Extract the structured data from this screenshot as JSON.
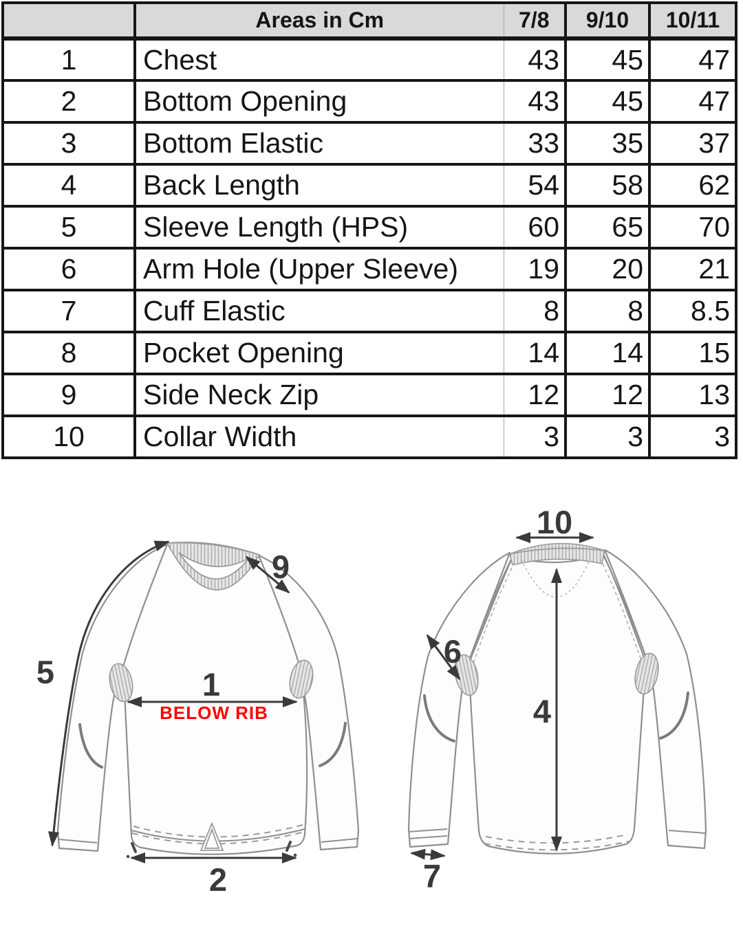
{
  "table": {
    "header": {
      "corner_label": "",
      "area_column_label": "Areas in Cm",
      "size_labels": [
        "7/8",
        "9/10",
        "10/11"
      ]
    },
    "rows": [
      {
        "num": "1",
        "area": "Chest",
        "values": [
          "43",
          "45",
          "47"
        ]
      },
      {
        "num": "2",
        "area": "Bottom Opening",
        "values": [
          "43",
          "45",
          "47"
        ]
      },
      {
        "num": "3",
        "area": "Bottom Elastic",
        "values": [
          "33",
          "35",
          "37"
        ]
      },
      {
        "num": "4",
        "area": "Back Length",
        "values": [
          "54",
          "58",
          "62"
        ]
      },
      {
        "num": "5",
        "area": "Sleeve Length (HPS)",
        "values": [
          "60",
          "65",
          "70"
        ]
      },
      {
        "num": "6",
        "area": "Arm Hole (Upper Sleeve)",
        "values": [
          "19",
          "20",
          "21"
        ]
      },
      {
        "num": "7",
        "area": "Cuff Elastic",
        "values": [
          "8",
          "8",
          "8.5"
        ]
      },
      {
        "num": "8",
        "area": "Pocket Opening",
        "values": [
          "14",
          "14",
          "15"
        ]
      },
      {
        "num": "9",
        "area": "Side Neck Zip",
        "values": [
          "12",
          "12",
          "13"
        ]
      },
      {
        "num": "10",
        "area": "Collar Width",
        "values": [
          "3",
          "3",
          "3"
        ]
      }
    ]
  },
  "diagrams": {
    "front": {
      "labels": {
        "sleeve_length": "5",
        "side_neck_zip": "9",
        "chest": "1",
        "chest_note": "BELOW RIB",
        "bottom_opening": "2"
      }
    },
    "back": {
      "labels": {
        "collar_width": "10",
        "arm_hole": "6",
        "back_length": "4",
        "cuff_elastic": "7"
      }
    }
  },
  "colors": {
    "header_bg": "#d9d9d9",
    "grid_black": "#161616",
    "thin_grid": "#a8a8a8",
    "sketch_line": "#8f8f8f",
    "arrow_dark": "#3a3a3a",
    "note_red": "#ff0000",
    "rib_fill": "#e6e6e6",
    "rib_line": "#a8a8a8"
  }
}
